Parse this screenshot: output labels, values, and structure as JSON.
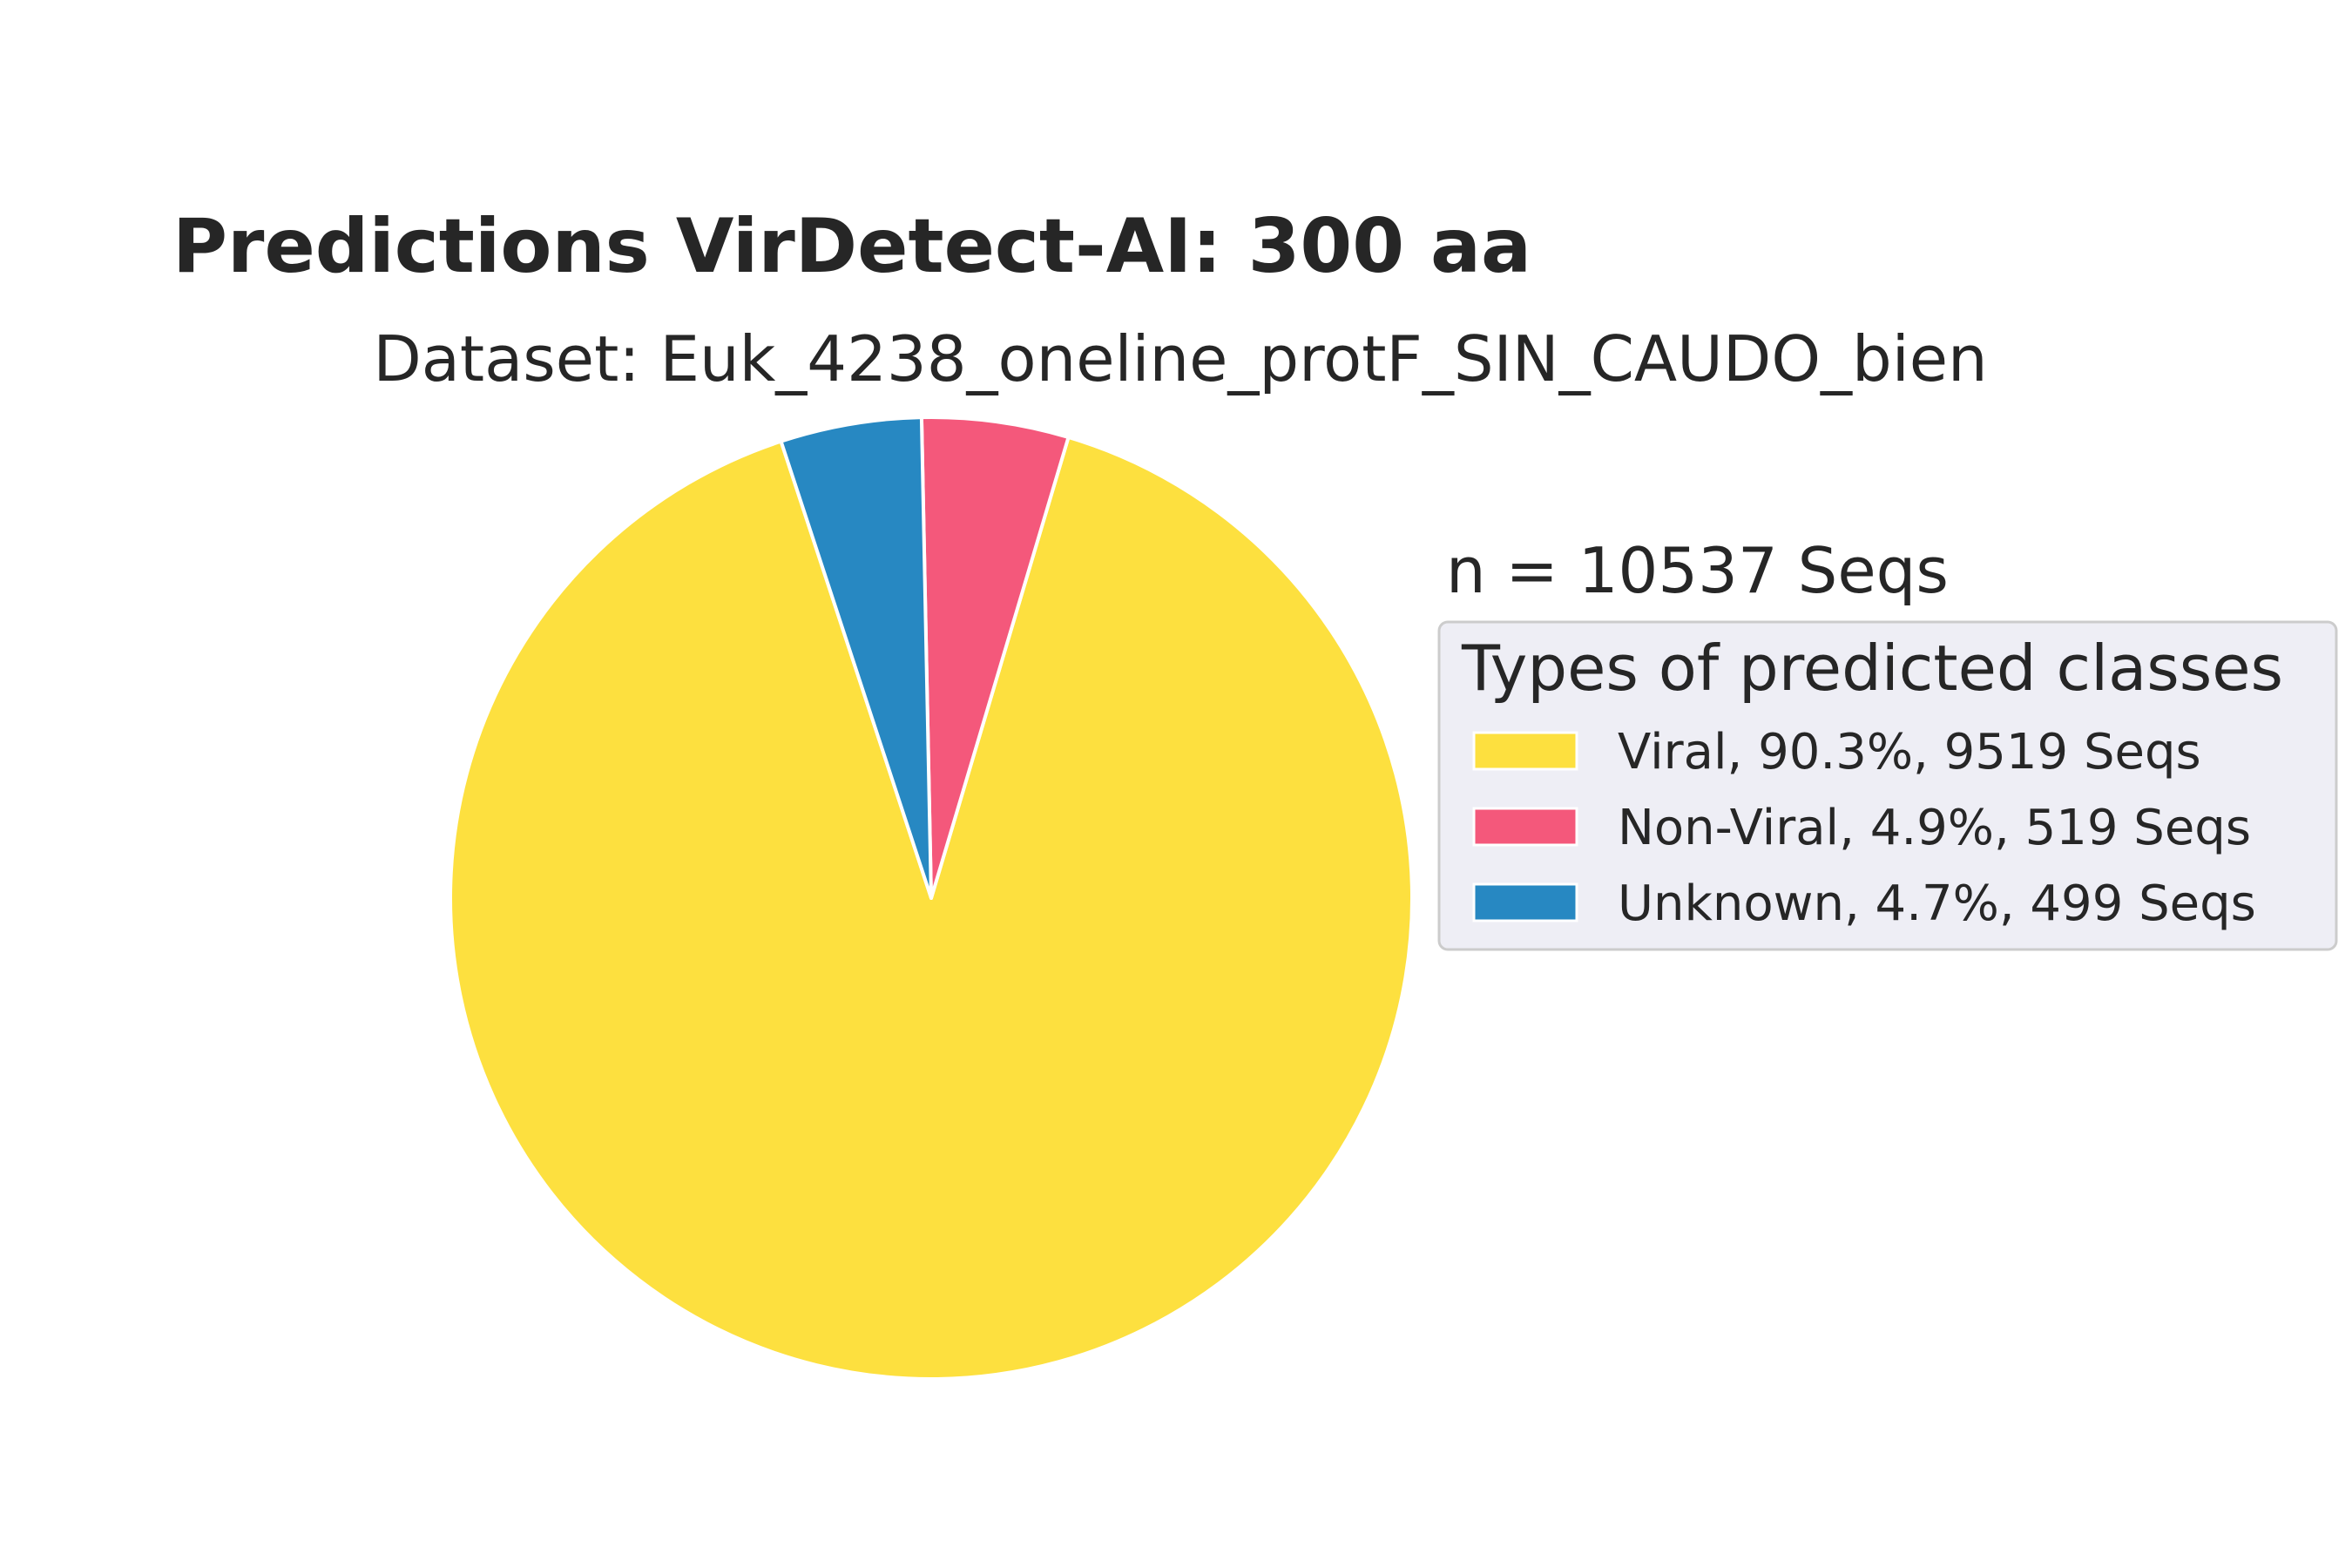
{
  "chart_data": {
    "type": "pie",
    "title": "Predictions VirDetect-AI: 300 aa",
    "subtitle": "Dataset: Euk_4238_oneline_protF_SIN_CAUDO_bien",
    "total_label": "n = 10537 Seqs",
    "total": 10537,
    "legend": {
      "title": "Types of predicted classes",
      "placement": "right"
    },
    "slices": [
      {
        "label": "Viral, 90.3%, 9519 Seqs",
        "category": "Viral",
        "percent": 90.3,
        "count": 9519,
        "color": "#FDE03F"
      },
      {
        "label": "Non-Viral, 4.9%, 519 Seqs",
        "category": "Non-Viral",
        "percent": 4.9,
        "count": 519,
        "color": "#F4587B"
      },
      {
        "label": "Unknown, 4.7%, 499 Seqs",
        "category": "Unknown",
        "percent": 4.7,
        "count": 499,
        "color": "#2788C2"
      }
    ]
  }
}
